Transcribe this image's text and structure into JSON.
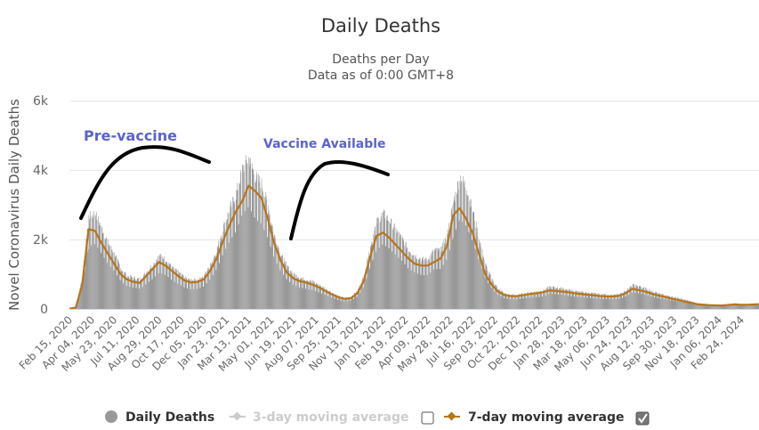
{
  "chart_data": {
    "type": "bar",
    "title": "Daily Deaths",
    "subtitle_lines": [
      "Deaths per Day",
      "Data as of 0:00 GMT+8"
    ],
    "ylabel": "Novel Coronavirus Daily Deaths",
    "xlabel": "",
    "ylim": [
      0,
      6000
    ],
    "yticks": [
      {
        "value": 0,
        "label": "0"
      },
      {
        "value": 2000,
        "label": "2k"
      },
      {
        "value": 4000,
        "label": "4k"
      },
      {
        "value": 6000,
        "label": "6k"
      }
    ],
    "grid": true,
    "x_start": "2020-02-15",
    "x_end": "2024-04-03",
    "xtick_labels": [
      "Feb 15, 2020",
      "Apr 04, 2020",
      "May 23, 2020",
      "Jul 11, 2020",
      "Aug 29, 2020",
      "Oct 17, 2020",
      "Dec 05, 2020",
      "Jan 23, 2021",
      "Mar 13, 2021",
      "May 01, 2021",
      "Jun 19, 2021",
      "Aug 07, 2021",
      "Sep 25, 2021",
      "Nov 13, 2021",
      "Jan 01, 2022",
      "Feb 19, 2022",
      "Apr 09, 2022",
      "May 28, 2022",
      "Jul 16, 2022",
      "Sep 03, 2022",
      "Oct 22, 2022",
      "Dec 10, 2022",
      "Jan 28, 2023",
      "Mar 18, 2023",
      "May 06, 2023",
      "Jun 24, 2023",
      "Aug 12, 2023",
      "Sep 30, 2023",
      "Nov 18, 2023",
      "Jan 06, 2024",
      "Feb 24, 2024"
    ],
    "sample_interval_days": 14,
    "series": [
      {
        "name": "Daily Deaths",
        "kind": "bar",
        "color": "#999999",
        "values": [
          10,
          60,
          900,
          2500,
          2600,
          2200,
          1800,
          1500,
          1100,
          900,
          850,
          800,
          1000,
          1200,
          1450,
          1350,
          1150,
          1000,
          850,
          780,
          800,
          900,
          1200,
          1600,
          2200,
          2700,
          3100,
          3800,
          4100,
          3600,
          3400,
          2800,
          2000,
          1500,
          1150,
          950,
          850,
          800,
          750,
          650,
          550,
          450,
          350,
          300,
          330,
          500,
          900,
          1700,
          2350,
          2600,
          2400,
          2150,
          1900,
          1600,
          1450,
          1350,
          1350,
          1600,
          1600,
          2000,
          2900,
          3600,
          3300,
          2700,
          1900,
          1200,
          800,
          550,
          420,
          380,
          380,
          420,
          450,
          470,
          500,
          600,
          580,
          560,
          520,
          480,
          460,
          440,
          420,
          400,
          390,
          380,
          400,
          500,
          650,
          620,
          560,
          480,
          420,
          380,
          330,
          300,
          260,
          220,
          160,
          140,
          120,
          110,
          110,
          130,
          150,
          130,
          130,
          140,
          150,
          160,
          160,
          160,
          155,
          160,
          200,
          240,
          230,
          200,
          150,
          100,
          70
        ]
      },
      {
        "name": "3-day moving average",
        "kind": "line",
        "color": "#cccccc",
        "visible": false
      },
      {
        "name": "7-day moving average",
        "kind": "line",
        "color": "#b8741a",
        "visible": true,
        "values": [
          5,
          40,
          700,
          2300,
          2250,
          1900,
          1600,
          1300,
          1000,
          850,
          780,
          750,
          950,
          1150,
          1350,
          1250,
          1100,
          950,
          820,
          760,
          780,
          850,
          1100,
          1450,
          1950,
          2400,
          2800,
          3100,
          3550,
          3400,
          3200,
          2600,
          1900,
          1400,
          1050,
          880,
          800,
          760,
          700,
          620,
          520,
          420,
          340,
          290,
          310,
          450,
          800,
          1500,
          2100,
          2200,
          2050,
          1850,
          1650,
          1450,
          1300,
          1250,
          1250,
          1350,
          1450,
          1800,
          2700,
          2900,
          2600,
          2200,
          1600,
          1000,
          700,
          500,
          400,
          370,
          370,
          400,
          430,
          450,
          480,
          530,
          520,
          500,
          480,
          450,
          430,
          410,
          390,
          370,
          360,
          360,
          380,
          460,
          580,
          540,
          500,
          440,
          390,
          350,
          300,
          260,
          220,
          180,
          140,
          120,
          110,
          100,
          100,
          115,
          130,
          120,
          120,
          130,
          140,
          150,
          150,
          150,
          145,
          150,
          180,
          200,
          190,
          170,
          130,
          90,
          60
        ]
      }
    ],
    "legend": {
      "placement": "bottom",
      "items": [
        {
          "label": "Daily Deaths",
          "marker": "circle",
          "color": "#999999",
          "enabled": true
        },
        {
          "label": "3-day moving average",
          "marker": "line-diamond",
          "color": "#cccccc",
          "enabled": false,
          "checkbox_checked": false
        },
        {
          "label": "7-day moving average",
          "marker": "line-diamond",
          "color": "#b8741a",
          "enabled": true,
          "checkbox_checked": true
        }
      ]
    },
    "annotations": [
      {
        "text": "Pre-vaccine",
        "color": "#5a64c8"
      },
      {
        "text": "Vaccine Available",
        "color": "#5a64c8"
      }
    ]
  }
}
